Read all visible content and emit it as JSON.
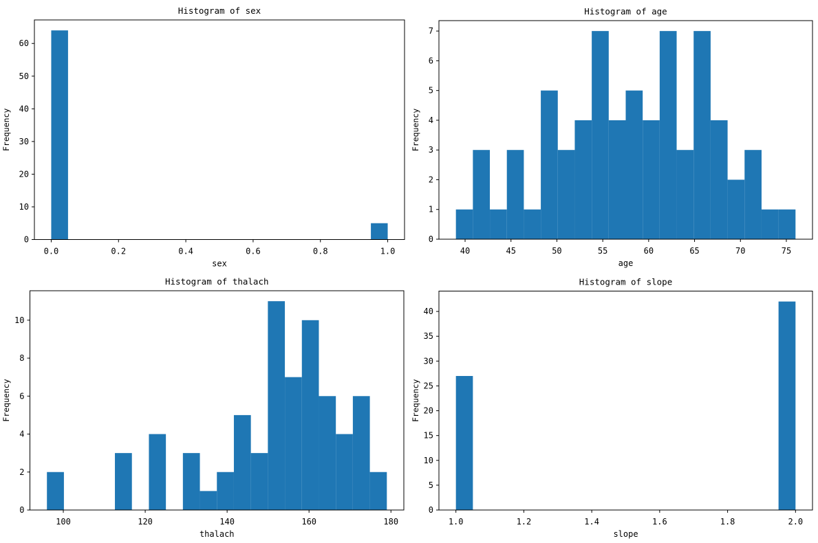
{
  "figure": {
    "background": "#ffffff",
    "bar_color": "#1f77b4",
    "axis_color": "#000000",
    "text_color": "#000000"
  },
  "chart_data": [
    {
      "id": "sex",
      "type": "bar",
      "title": "Histogram of sex",
      "xlabel": "sex",
      "ylabel": "Frequency",
      "bins": {
        "start": 0.0,
        "width": 0.05,
        "count": 20
      },
      "values": [
        64,
        0,
        0,
        0,
        0,
        0,
        0,
        0,
        0,
        0,
        0,
        0,
        0,
        0,
        0,
        0,
        0,
        0,
        0,
        5
      ],
      "xlim": [
        -0.05,
        1.05
      ],
      "ylim": [
        0,
        67.2
      ],
      "x_ticks": {
        "values": [
          0.0,
          0.2,
          0.4,
          0.6,
          0.8,
          1.0
        ],
        "labels": [
          "0.0",
          "0.2",
          "0.4",
          "0.6",
          "0.8",
          "1.0"
        ]
      },
      "y_ticks": {
        "values": [
          0,
          10,
          20,
          30,
          40,
          50,
          60
        ],
        "labels": [
          "0",
          "10",
          "20",
          "30",
          "40",
          "50",
          "60"
        ]
      },
      "grid": false,
      "legend": null
    },
    {
      "id": "age",
      "type": "bar",
      "title": "Histogram of age",
      "xlabel": "age",
      "ylabel": "Frequency",
      "bins": {
        "start": 39.0,
        "width": 1.85,
        "count": 20
      },
      "values": [
        1,
        3,
        1,
        3,
        1,
        5,
        3,
        4,
        7,
        4,
        5,
        4,
        7,
        3,
        7,
        4,
        2,
        3,
        1,
        1
      ],
      "xlim": [
        37.15,
        77.85
      ],
      "ylim": [
        0,
        7.35
      ],
      "x_ticks": {
        "values": [
          40,
          45,
          50,
          55,
          60,
          65,
          70,
          75
        ],
        "labels": [
          "40",
          "45",
          "50",
          "55",
          "60",
          "65",
          "70",
          "75"
        ]
      },
      "y_ticks": {
        "values": [
          0,
          1,
          2,
          3,
          4,
          5,
          6,
          7
        ],
        "labels": [
          "0",
          "1",
          "2",
          "3",
          "4",
          "5",
          "6",
          "7"
        ]
      },
      "grid": false,
      "legend": null
    },
    {
      "id": "thalach",
      "type": "bar",
      "title": "Histogram of thalach",
      "xlabel": "thalach",
      "ylabel": "Frequency",
      "bins": {
        "start": 96.0,
        "width": 4.15,
        "count": 20
      },
      "values": [
        2,
        0,
        0,
        0,
        3,
        0,
        4,
        0,
        3,
        1,
        2,
        5,
        3,
        11,
        7,
        10,
        6,
        4,
        6,
        2
      ],
      "xlim": [
        91.85,
        183.15
      ],
      "ylim": [
        0,
        11.55
      ],
      "x_ticks": {
        "values": [
          100,
          120,
          140,
          160,
          180
        ],
        "labels": [
          "100",
          "120",
          "140",
          "160",
          "180"
        ]
      },
      "y_ticks": {
        "values": [
          0,
          2,
          4,
          6,
          8,
          10
        ],
        "labels": [
          "0",
          "2",
          "4",
          "6",
          "8",
          "10"
        ]
      },
      "grid": false,
      "legend": null
    },
    {
      "id": "slope",
      "type": "bar",
      "title": "Histogram of slope",
      "xlabel": "slope",
      "ylabel": "Frequency",
      "bins": {
        "start": 1.0,
        "width": 0.05,
        "count": 20
      },
      "values": [
        27,
        0,
        0,
        0,
        0,
        0,
        0,
        0,
        0,
        0,
        0,
        0,
        0,
        0,
        0,
        0,
        0,
        0,
        0,
        42
      ],
      "xlim": [
        0.95,
        2.05
      ],
      "ylim": [
        0,
        44.1
      ],
      "x_ticks": {
        "values": [
          1.0,
          1.2,
          1.4,
          1.6,
          1.8,
          2.0
        ],
        "labels": [
          "1.0",
          "1.2",
          "1.4",
          "1.6",
          "1.8",
          "2.0"
        ]
      },
      "y_ticks": {
        "values": [
          0,
          5,
          10,
          15,
          20,
          25,
          30,
          35,
          40
        ],
        "labels": [
          "0",
          "5",
          "10",
          "15",
          "20",
          "25",
          "30",
          "35",
          "40"
        ]
      },
      "grid": false,
      "legend": null
    }
  ]
}
